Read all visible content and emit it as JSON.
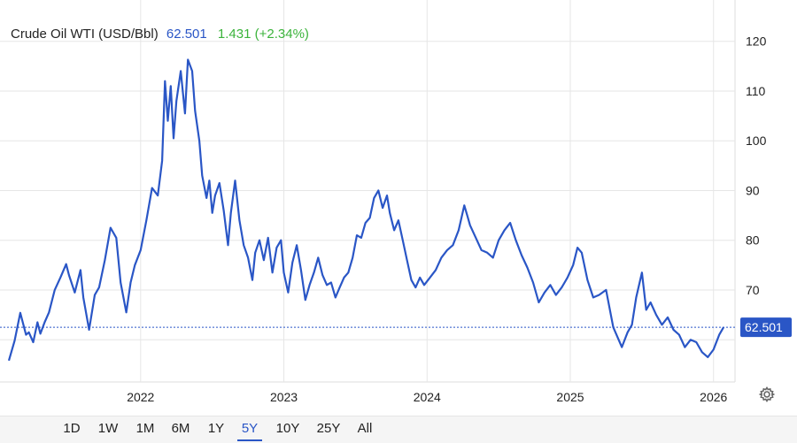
{
  "header": {
    "title": "Crude Oil WTI (USD/Bbl)",
    "price": "62.501",
    "change": "1.431 (+2.34%)"
  },
  "current_label": "62.501",
  "range_buttons": [
    {
      "label": "1D",
      "active": false
    },
    {
      "label": "1W",
      "active": false
    },
    {
      "label": "1M",
      "active": false
    },
    {
      "label": "6M",
      "active": false
    },
    {
      "label": "1Y",
      "active": false
    },
    {
      "label": "5Y",
      "active": true
    },
    {
      "label": "10Y",
      "active": false
    },
    {
      "label": "25Y",
      "active": false
    },
    {
      "label": "All",
      "active": false
    }
  ],
  "colors": {
    "line": "#2a56c6",
    "grid": "#e6e6e6",
    "positive": "#3bb33b"
  },
  "icons": {
    "settings": "gear-icon"
  },
  "chart_data": {
    "type": "line",
    "title": "Crude Oil WTI (USD/Bbl)",
    "xlabel": "",
    "ylabel": "",
    "ylim": [
      51.5,
      128.3
    ],
    "xlim": [
      2021.08,
      2026.15
    ],
    "x_ticks": [
      {
        "label": "2022",
        "value": 2022
      },
      {
        "label": "2023",
        "value": 2023
      },
      {
        "label": "2024",
        "value": 2024
      },
      {
        "label": "2025",
        "value": 2025
      },
      {
        "label": "2026",
        "value": 2026
      }
    ],
    "y_ticks": [
      70,
      80,
      90,
      100,
      110,
      120
    ],
    "grid": true,
    "last_value": 62.501,
    "series": [
      {
        "name": "",
        "x": [
          2021.08,
          2021.12,
          2021.16,
          2021.2,
          2021.22,
          2021.25,
          2021.28,
          2021.3,
          2021.33,
          2021.36,
          2021.4,
          2021.44,
          2021.48,
          2021.5,
          2021.54,
          2021.58,
          2021.6,
          2021.64,
          2021.68,
          2021.71,
          2021.75,
          2021.79,
          2021.83,
          2021.86,
          2021.9,
          2021.93,
          2021.96,
          2022.0,
          2022.04,
          2022.08,
          2022.12,
          2022.15,
          2022.17,
          2022.19,
          2022.21,
          2022.23,
          2022.25,
          2022.28,
          2022.31,
          2022.33,
          2022.36,
          2022.38,
          2022.41,
          2022.43,
          2022.46,
          2022.48,
          2022.5,
          2022.52,
          2022.55,
          2022.58,
          2022.61,
          2022.63,
          2022.66,
          2022.69,
          2022.72,
          2022.75,
          2022.78,
          2022.8,
          2022.83,
          2022.86,
          2022.89,
          2022.92,
          2022.95,
          2022.98,
          2023.0,
          2023.03,
          2023.06,
          2023.09,
          2023.12,
          2023.15,
          2023.18,
          2023.21,
          2023.24,
          2023.27,
          2023.3,
          2023.33,
          2023.36,
          2023.39,
          2023.42,
          2023.45,
          2023.48,
          2023.51,
          2023.54,
          2023.57,
          2023.6,
          2023.63,
          2023.66,
          2023.69,
          2023.72,
          2023.74,
          2023.77,
          2023.8,
          2023.83,
          2023.86,
          2023.89,
          2023.92,
          2023.95,
          2023.98,
          2024.02,
          2024.06,
          2024.1,
          2024.14,
          2024.18,
          2024.22,
          2024.26,
          2024.28,
          2024.3,
          2024.34,
          2024.38,
          2024.42,
          2024.46,
          2024.5,
          2024.54,
          2024.58,
          2024.62,
          2024.66,
          2024.7,
          2024.74,
          2024.78,
          2024.82,
          2024.86,
          2024.9,
          2024.94,
          2024.98,
          2025.02,
          2025.05,
          2025.08,
          2025.12,
          2025.16,
          2025.2,
          2025.25,
          2025.3,
          2025.33,
          2025.36,
          2025.4,
          2025.43,
          2025.46,
          2025.5,
          2025.53,
          2025.56,
          2025.6,
          2025.64,
          2025.68,
          2025.72,
          2025.76,
          2025.8,
          2025.84,
          2025.88,
          2025.92,
          2025.96,
          2026.0,
          2026.04,
          2026.07
        ],
        "values": [
          55.8,
          59.8,
          65.4,
          61.0,
          61.5,
          59.5,
          63.5,
          61.2,
          63.5,
          65.5,
          70.0,
          72.5,
          75.2,
          73.0,
          69.5,
          74.0,
          68.5,
          62.0,
          69.0,
          70.5,
          76.0,
          82.5,
          80.5,
          71.5,
          65.5,
          71.5,
          75.0,
          78.0,
          84.0,
          90.5,
          89.0,
          96.0,
          112.0,
          104.0,
          111.0,
          100.5,
          108.0,
          114.0,
          105.5,
          116.3,
          114.0,
          106.0,
          100.0,
          93.0,
          88.5,
          92.0,
          85.5,
          89.0,
          91.5,
          86.0,
          79.0,
          85.5,
          92.0,
          84.0,
          79.0,
          76.5,
          72.0,
          77.5,
          80.0,
          76.0,
          80.5,
          73.5,
          78.5,
          80.0,
          73.5,
          69.5,
          75.5,
          79.0,
          74.0,
          68.0,
          71.0,
          73.5,
          76.5,
          73.0,
          71.0,
          71.5,
          68.5,
          70.5,
          72.5,
          73.5,
          76.5,
          81.0,
          80.5,
          83.5,
          84.5,
          88.5,
          90.0,
          86.5,
          89.0,
          85.5,
          82.0,
          84.0,
          80.0,
          76.0,
          72.0,
          70.5,
          72.5,
          71.0,
          72.5,
          74.0,
          76.5,
          78.0,
          79.0,
          82.0,
          87.0,
          85.0,
          83.0,
          80.5,
          78.0,
          77.5,
          76.5,
          80.0,
          82.0,
          83.5,
          80.0,
          77.0,
          74.5,
          71.5,
          67.5,
          69.5,
          71.0,
          69.0,
          70.5,
          72.5,
          75.0,
          78.5,
          77.5,
          72.0,
          68.5,
          69.0,
          70.0,
          62.5,
          60.5,
          58.5,
          61.5,
          63.0,
          68.5,
          73.5,
          66.0,
          67.5,
          65.0,
          63.0,
          64.5,
          62.0,
          61.0,
          58.5,
          60.0,
          59.5,
          57.5,
          56.5,
          58.0,
          61.0,
          62.5
        ]
      }
    ]
  }
}
